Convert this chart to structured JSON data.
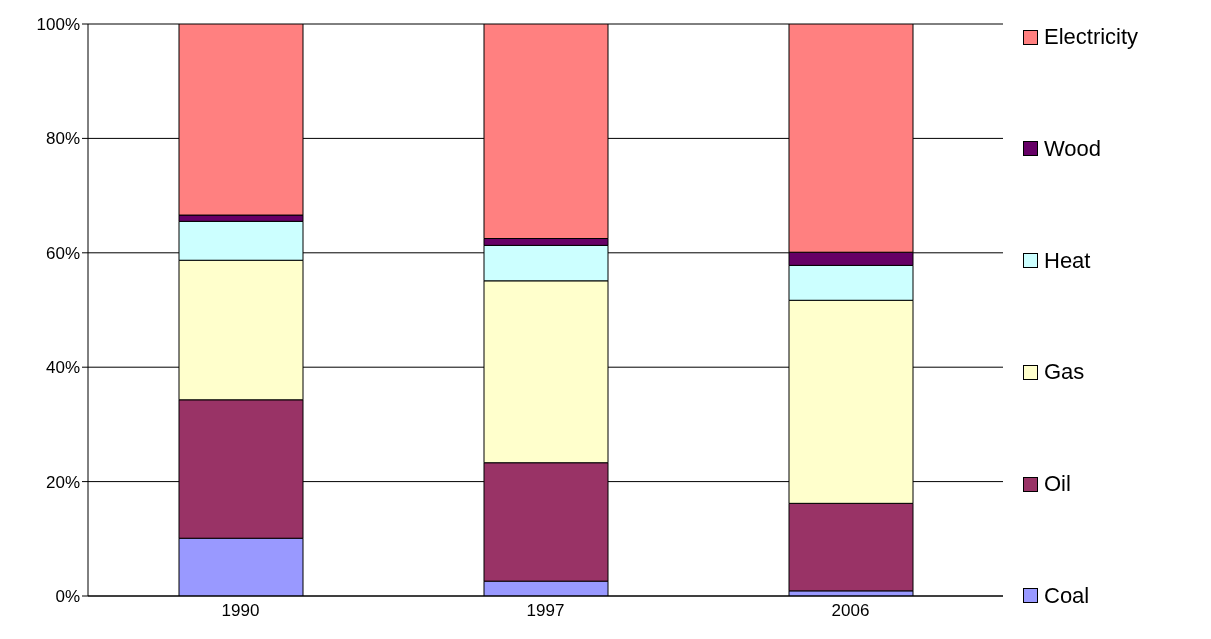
{
  "chart_data": {
    "type": "bar",
    "stacked": true,
    "categories": [
      "1990",
      "1997",
      "2006"
    ],
    "series": [
      {
        "name": "Coal",
        "color": "#9999ff",
        "values": [
          10.1,
          2.6,
          0.9
        ]
      },
      {
        "name": "Oil",
        "color": "#993366",
        "values": [
          24.2,
          20.7,
          15.3
        ]
      },
      {
        "name": "Gas",
        "color": "#ffffcc",
        "values": [
          24.4,
          31.8,
          35.5
        ]
      },
      {
        "name": "Heat",
        "color": "#ccffff",
        "values": [
          6.8,
          6.2,
          6.1
        ]
      },
      {
        "name": "Wood",
        "color": "#660066",
        "values": [
          1.1,
          1.2,
          2.3
        ]
      },
      {
        "name": "Electricity",
        "color": "#ff8080",
        "values": [
          33.4,
          37.5,
          39.9
        ]
      }
    ],
    "ylim": [
      0,
      100
    ],
    "yticks": [
      {
        "value": 0,
        "label": "0%"
      },
      {
        "value": 20,
        "label": "20%"
      },
      {
        "value": 40,
        "label": "40%"
      },
      {
        "value": 60,
        "label": "60%"
      },
      {
        "value": 80,
        "label": "80%"
      },
      {
        "value": 100,
        "label": "100%"
      }
    ],
    "grid": "y",
    "legend": "right"
  }
}
